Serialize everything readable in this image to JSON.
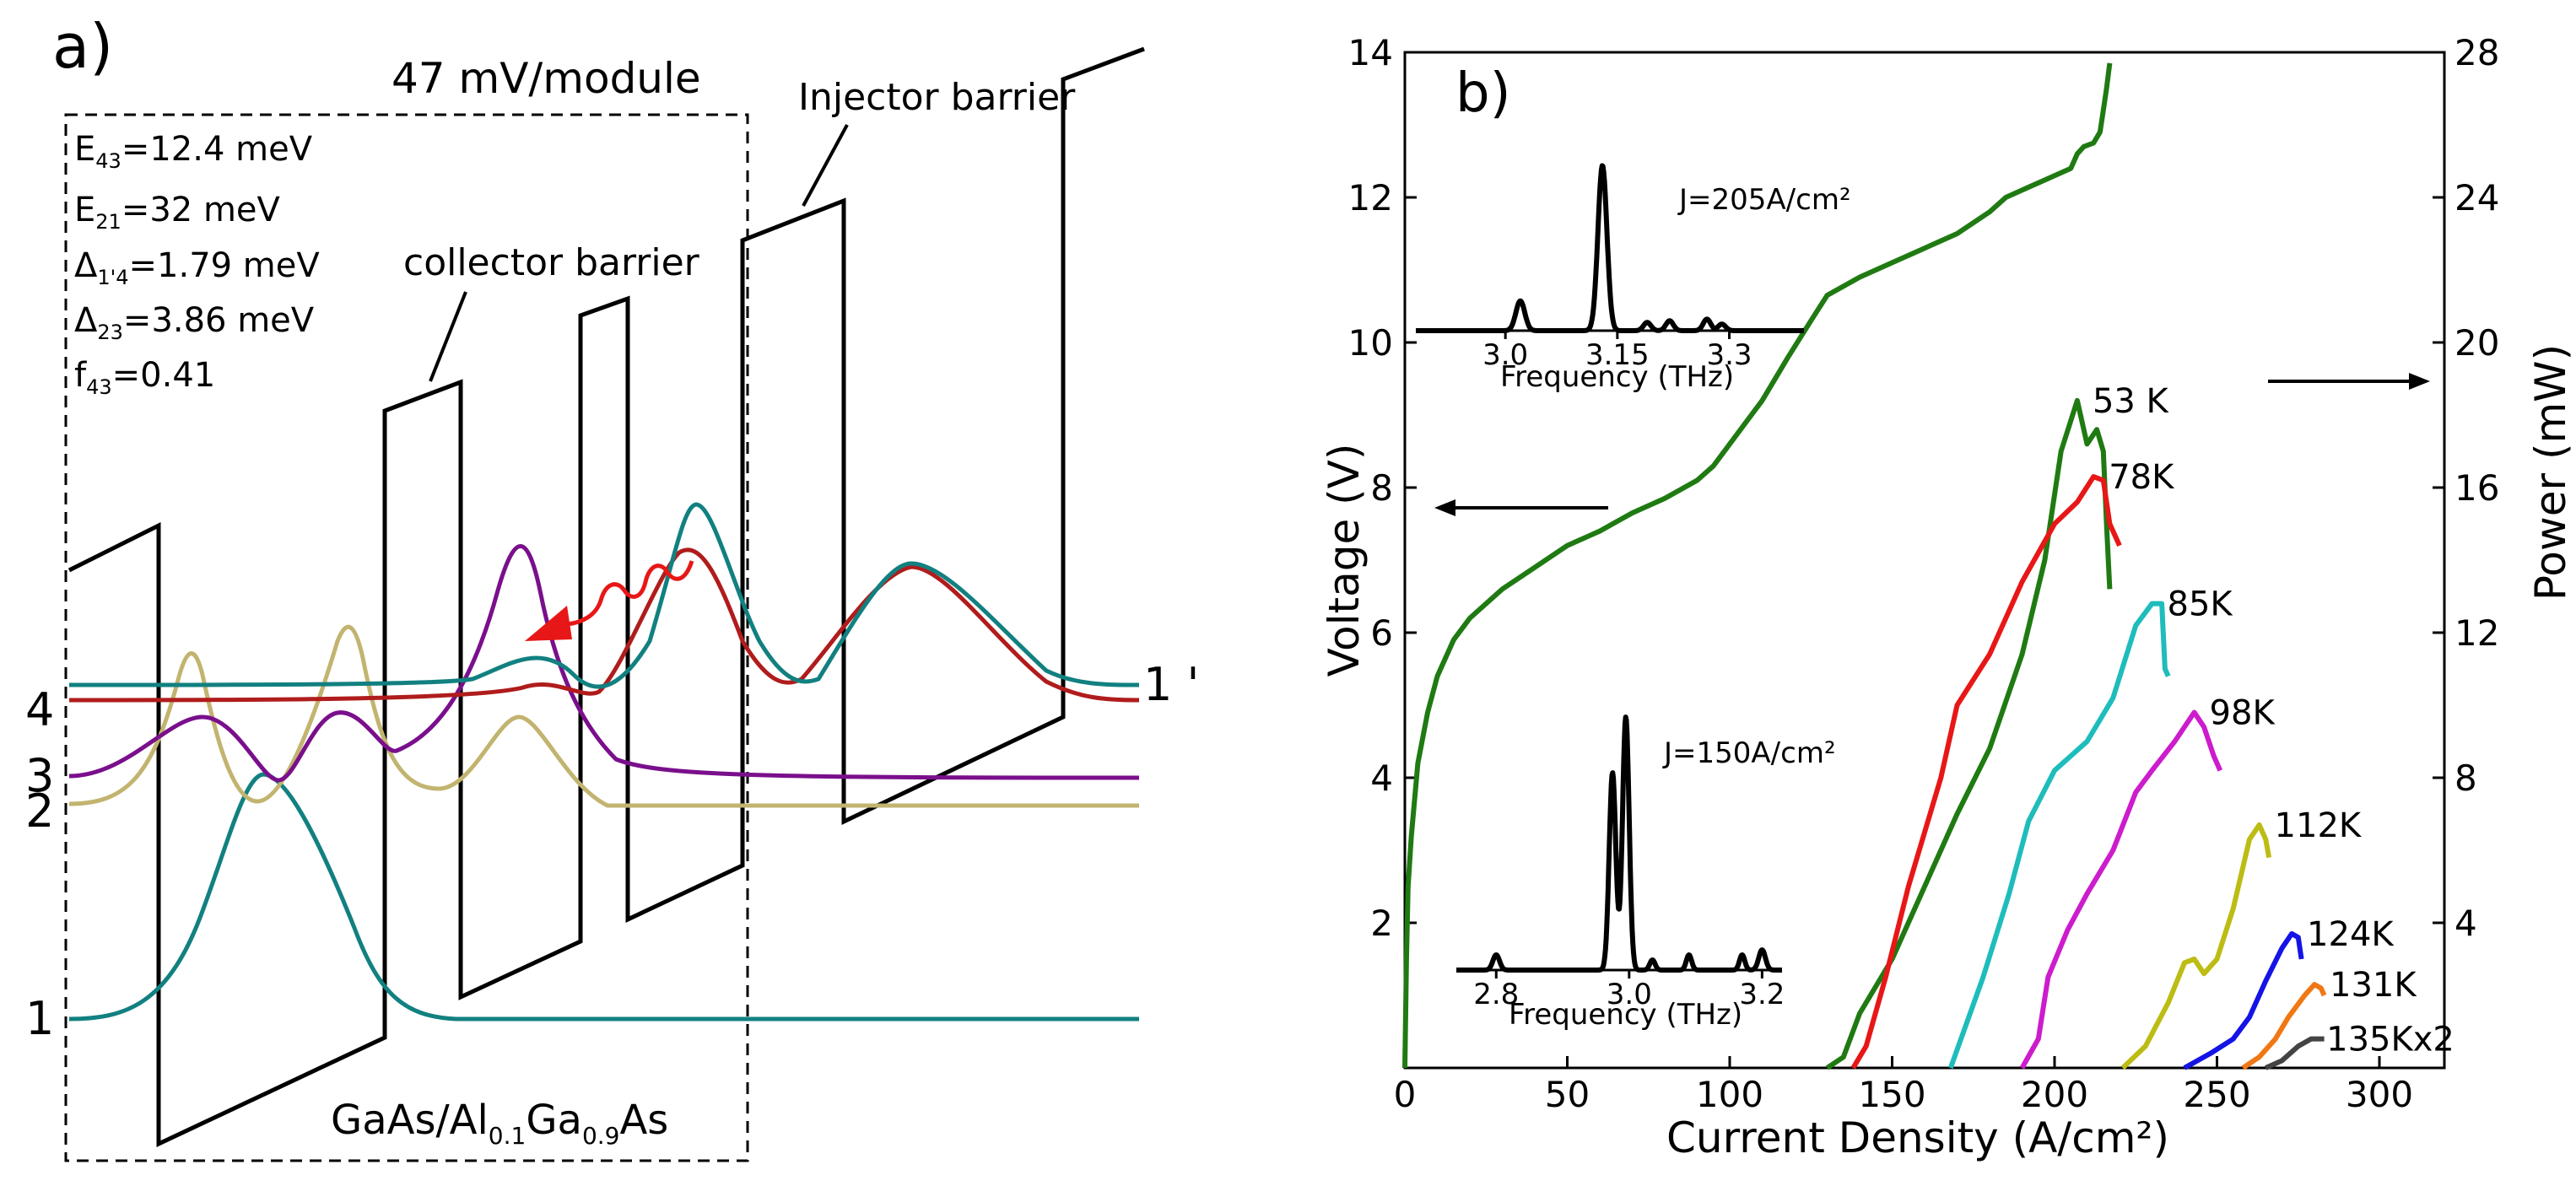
{
  "panel_a": {
    "label": "a)",
    "bias": "47 mV/module",
    "params": [
      {
        "sym": "E",
        "sub": "43",
        "rest": "=12.4 meV"
      },
      {
        "sym": "E",
        "sub": "21",
        "rest": "=32 meV"
      },
      {
        "sym": "Δ",
        "sub": "1'4",
        "rest": "=1.79 meV"
      },
      {
        "sym": "Δ",
        "sub": "23",
        "rest": "=3.86 meV"
      },
      {
        "sym": "f",
        "sub": "43",
        "rest": "=0.41"
      }
    ],
    "collector_label": "collector barrier",
    "injector_label": "Injector barrier",
    "material": {
      "p1": "GaAs/Al",
      "s1": "0.1",
      "p2": "Ga",
      "s2": "0.9",
      "p3": "As"
    },
    "levels": [
      {
        "label": "1 '",
        "color": "#128080"
      },
      {
        "label": "4",
        "color": "#b01c1c"
      },
      {
        "label": "3",
        "color": "#7a0f8c"
      },
      {
        "label": "2",
        "color": "#c2b470"
      },
      {
        "label": "1",
        "color": "#128080"
      }
    ]
  },
  "chart_data": {
    "type": "line",
    "panel_label": "b)",
    "xlabel": "Current Density (A/cm²)",
    "ylabel": "Voltage (V)",
    "y2label": "Power (mW)",
    "xlim": [
      0,
      320
    ],
    "ylim": [
      0,
      14
    ],
    "y2lim": [
      0,
      28
    ],
    "xticks": [
      0,
      50,
      100,
      150,
      200,
      250,
      300
    ],
    "yticks": [
      2,
      4,
      6,
      8,
      10,
      12,
      14
    ],
    "y2ticks": [
      4,
      8,
      12,
      16,
      20,
      24,
      28
    ],
    "voltage_series": {
      "name": "Voltage",
      "color": "#1f7a12",
      "points": [
        [
          0,
          0
        ],
        [
          0.5,
          1.5
        ],
        [
          1,
          2.5
        ],
        [
          2,
          3.2
        ],
        [
          4,
          4.2
        ],
        [
          7,
          4.9
        ],
        [
          10,
          5.4
        ],
        [
          15,
          5.9
        ],
        [
          20,
          6.2
        ],
        [
          30,
          6.6
        ],
        [
          40,
          6.9
        ],
        [
          50,
          7.2
        ],
        [
          60,
          7.4
        ],
        [
          70,
          7.65
        ],
        [
          80,
          7.85
        ],
        [
          90,
          8.1
        ],
        [
          95,
          8.3
        ],
        [
          100,
          8.6
        ],
        [
          110,
          9.2
        ],
        [
          118,
          9.8
        ],
        [
          125,
          10.3
        ],
        [
          130,
          10.65
        ],
        [
          140,
          10.9
        ],
        [
          150,
          11.1
        ],
        [
          160,
          11.3
        ],
        [
          170,
          11.5
        ],
        [
          180,
          11.8
        ],
        [
          185,
          12.0
        ],
        [
          190,
          12.1
        ],
        [
          200,
          12.3
        ],
        [
          205,
          12.4
        ],
        [
          207,
          12.6
        ],
        [
          209,
          12.7
        ],
        [
          212,
          12.75
        ],
        [
          214,
          12.9
        ],
        [
          215,
          13.2
        ],
        [
          216,
          13.5
        ],
        [
          217,
          13.85
        ]
      ]
    },
    "power_series": [
      {
        "name": "53 K",
        "color": "#1f7a12",
        "points": [
          [
            130,
            0
          ],
          [
            135,
            0.3
          ],
          [
            140,
            1.5
          ],
          [
            150,
            3.0
          ],
          [
            160,
            5.0
          ],
          [
            170,
            7.0
          ],
          [
            180,
            8.8
          ],
          [
            190,
            11.4
          ],
          [
            197,
            14.0
          ],
          [
            202,
            17.0
          ],
          [
            207,
            18.4
          ],
          [
            210,
            17.2
          ],
          [
            213,
            17.6
          ],
          [
            215,
            17.0
          ],
          [
            216,
            15.0
          ],
          [
            217,
            13.2
          ]
        ]
      },
      {
        "name": "78K",
        "color": "#e81717",
        "points": [
          [
            138,
            0
          ],
          [
            142,
            0.6
          ],
          [
            148,
            2.5
          ],
          [
            155,
            5.0
          ],
          [
            165,
            8.0
          ],
          [
            170,
            10.0
          ],
          [
            180,
            11.4
          ],
          [
            190,
            13.4
          ],
          [
            200,
            15.0
          ],
          [
            207,
            15.6
          ],
          [
            212,
            16.3
          ],
          [
            215,
            16.2
          ],
          [
            217,
            15.0
          ],
          [
            220,
            14.4
          ]
        ]
      },
      {
        "name": "85K",
        "color": "#1fbcbc",
        "points": [
          [
            168,
            0
          ],
          [
            172,
            1.0
          ],
          [
            178,
            2.5
          ],
          [
            186,
            4.8
          ],
          [
            192,
            6.8
          ],
          [
            200,
            8.2
          ],
          [
            210,
            9.0
          ],
          [
            218,
            10.2
          ],
          [
            225,
            12.2
          ],
          [
            230,
            12.8
          ],
          [
            233,
            12.8
          ],
          [
            234,
            11.0
          ],
          [
            235,
            10.8
          ]
        ]
      },
      {
        "name": "98K",
        "color": "#cc1ccc",
        "points": [
          [
            190,
            0
          ],
          [
            195,
            0.8
          ],
          [
            198,
            2.5
          ],
          [
            204,
            3.8
          ],
          [
            210,
            4.8
          ],
          [
            218,
            6.0
          ],
          [
            225,
            7.6
          ],
          [
            230,
            8.2
          ],
          [
            237,
            9.0
          ],
          [
            243,
            9.8
          ],
          [
            246,
            9.4
          ],
          [
            249,
            8.6
          ],
          [
            251,
            8.2
          ]
        ]
      },
      {
        "name": "112K",
        "color": "#bcbc14",
        "points": [
          [
            221,
            0
          ],
          [
            228,
            0.6
          ],
          [
            235,
            1.8
          ],
          [
            240,
            2.9
          ],
          [
            243,
            3.0
          ],
          [
            246,
            2.6
          ],
          [
            250,
            3.0
          ],
          [
            255,
            4.4
          ],
          [
            260,
            6.3
          ],
          [
            263,
            6.7
          ],
          [
            265,
            6.3
          ],
          [
            266,
            5.8
          ]
        ]
      },
      {
        "name": "124K",
        "color": "#1414e6",
        "points": [
          [
            240,
            0
          ],
          [
            248,
            0.4
          ],
          [
            255,
            0.8
          ],
          [
            260,
            1.4
          ],
          [
            265,
            2.4
          ],
          [
            270,
            3.3
          ],
          [
            273,
            3.7
          ],
          [
            275,
            3.6
          ],
          [
            276,
            3.0
          ]
        ]
      },
      {
        "name": "131K",
        "color": "#f07814",
        "points": [
          [
            258,
            0
          ],
          [
            263,
            0.3
          ],
          [
            268,
            0.8
          ],
          [
            272,
            1.4
          ],
          [
            277,
            2.0
          ],
          [
            280,
            2.3
          ],
          [
            282,
            2.2
          ],
          [
            283,
            2.0
          ]
        ]
      },
      {
        "name": "135Kx2",
        "color": "#444444",
        "points": [
          [
            265,
            0
          ],
          [
            270,
            0.2
          ],
          [
            275,
            0.6
          ],
          [
            279,
            0.8
          ],
          [
            283,
            0.8
          ]
        ]
      }
    ],
    "annotations": {
      "arrow_left": "Voltage axis",
      "arrow_right": "Power axis"
    },
    "insets": [
      {
        "title": "J=205A/cm²",
        "xlabel": "Frequency (THz)",
        "ticks": [
          {
            "v": 3.0,
            "label": "3.0"
          },
          {
            "v": 3.15,
            "label": "3.15"
          },
          {
            "v": 3.3,
            "label": "3.3"
          }
        ],
        "xrange": [
          2.88,
          3.4
        ],
        "peaks": [
          {
            "f": 3.02,
            "a": 0.18,
            "w": 0.006
          },
          {
            "f": 3.13,
            "a": 1.0,
            "w": 0.006
          },
          {
            "f": 3.19,
            "a": 0.05,
            "w": 0.005
          },
          {
            "f": 3.22,
            "a": 0.06,
            "w": 0.005
          },
          {
            "f": 3.27,
            "a": 0.07,
            "w": 0.005
          },
          {
            "f": 3.29,
            "a": 0.04,
            "w": 0.005
          }
        ]
      },
      {
        "title": "J=150A/cm²",
        "xlabel": "Frequency (THz)",
        "ticks": [
          {
            "v": 2.8,
            "label": "2.8"
          },
          {
            "v": 3.0,
            "label": "3.0"
          },
          {
            "v": 3.2,
            "label": "3.2"
          }
        ],
        "xrange": [
          2.74,
          3.23
        ],
        "peaks": [
          {
            "f": 2.8,
            "a": 0.06,
            "w": 0.005
          },
          {
            "f": 2.975,
            "a": 0.78,
            "w": 0.005
          },
          {
            "f": 2.995,
            "a": 1.0,
            "w": 0.005
          },
          {
            "f": 3.035,
            "a": 0.04,
            "w": 0.004
          },
          {
            "f": 3.09,
            "a": 0.06,
            "w": 0.004
          },
          {
            "f": 3.17,
            "a": 0.06,
            "w": 0.004
          },
          {
            "f": 3.2,
            "a": 0.08,
            "w": 0.005
          }
        ]
      }
    ]
  }
}
